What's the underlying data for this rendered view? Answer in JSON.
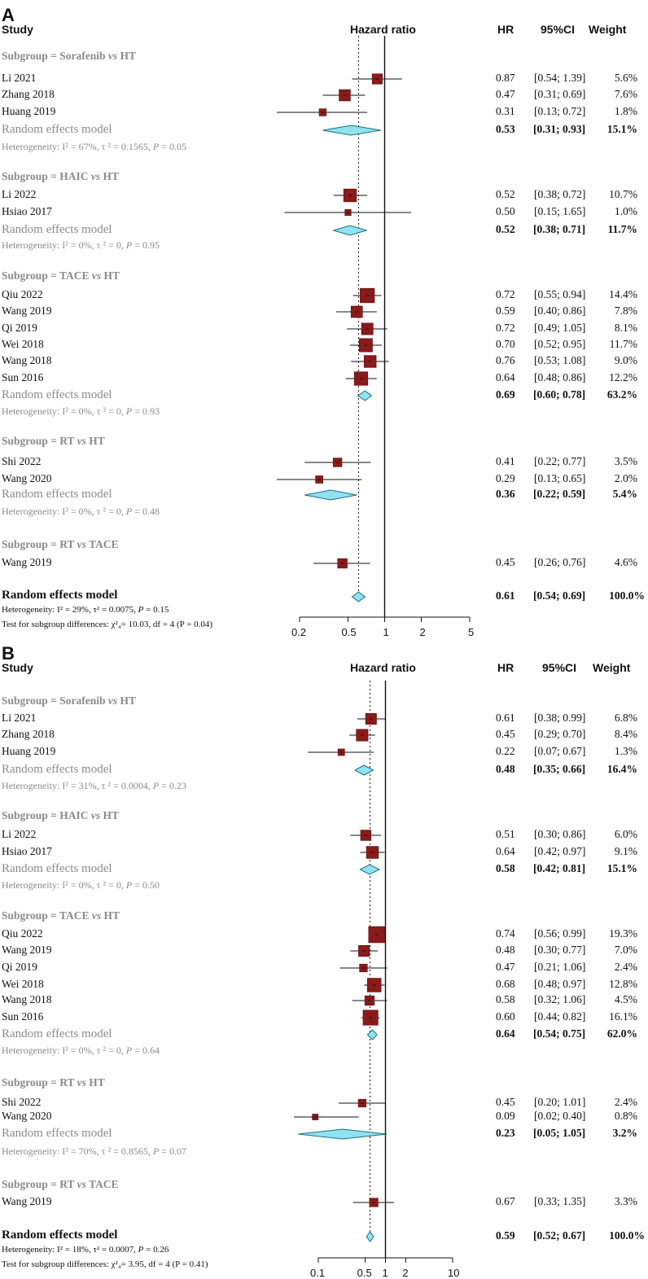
{
  "header": {
    "study": "Study",
    "hazard_ratio": "Hazard ratio",
    "hr": "HR",
    "ci": "95%CI",
    "weight": "Weight"
  },
  "chart_data": [
    {
      "panel": "A",
      "type": "forest",
      "x_scale": "log",
      "xlim": [
        0.2,
        5
      ],
      "ticks": [
        "0.2",
        "0.5",
        "1",
        "2",
        "5"
      ],
      "overall": {
        "label": "Random effects model",
        "hr": "0.61",
        "ci": "[0.54; 0.69]",
        "weight": "100.0%",
        "est": 0.61,
        "lo": 0.54,
        "hi": 0.69
      },
      "footer": [
        "Heterogeneity: I² = 29%, τ² = 0.0075, P = 0.15",
        "Test for subgroup differences: χ²₄= 10.03, df = 4 (P = 0.04)"
      ],
      "subgroups": [
        {
          "title": "Subgroup = Sorafenib vs HT",
          "studies": [
            {
              "name": "Li 2021",
              "hr": "0.87",
              "ci": "[0.54; 1.39]",
              "weight": "5.6%",
              "est": 0.87,
              "lo": 0.54,
              "hi": 1.39,
              "w": 5.6
            },
            {
              "name": "Zhang 2018",
              "hr": "0.47",
              "ci": "[0.31; 0.69]",
              "weight": "7.6%",
              "est": 0.47,
              "lo": 0.31,
              "hi": 0.69,
              "w": 7.6
            },
            {
              "name": "Huang 2019",
              "hr": "0.31",
              "ci": "[0.13; 0.72]",
              "weight": "1.8%",
              "est": 0.31,
              "lo": 0.13,
              "hi": 0.72,
              "w": 1.8
            }
          ],
          "model": {
            "label": "Random effects model",
            "hr": "0.53",
            "ci": "[0.31; 0.93]",
            "weight": "15.1%",
            "est": 0.53,
            "lo": 0.31,
            "hi": 0.93
          },
          "het": "Heterogeneity: I² = 67%, τ ² = 0.1565, P = 0.05"
        },
        {
          "title": "Subgroup = HAIC vs HT",
          "studies": [
            {
              "name": "Li 2022",
              "hr": "0.52",
              "ci": "[0.38; 0.72]",
              "weight": "10.7%",
              "est": 0.52,
              "lo": 0.38,
              "hi": 0.72,
              "w": 10.7
            },
            {
              "name": "Hsiao 2017",
              "hr": "0.50",
              "ci": "[0.15; 1.65]",
              "weight": "1.0%",
              "est": 0.5,
              "lo": 0.15,
              "hi": 1.65,
              "w": 1.0
            }
          ],
          "model": {
            "label": "Random effects model",
            "hr": "0.52",
            "ci": "[0.38; 0.71]",
            "weight": "11.7%",
            "est": 0.52,
            "lo": 0.38,
            "hi": 0.71
          },
          "het": "Heterogeneity: I² = 0%, τ ² = 0, P = 0.95"
        },
        {
          "title": "Subgroup = TACE vs HT",
          "studies": [
            {
              "name": "Qiu 2022",
              "hr": "0.72",
              "ci": "[0.55; 0.94]",
              "weight": "14.4%",
              "est": 0.72,
              "lo": 0.55,
              "hi": 0.94,
              "w": 14.4
            },
            {
              "name": "Wang 2019",
              "hr": "0.59",
              "ci": "[0.40; 0.86]",
              "weight": "7.8%",
              "est": 0.59,
              "lo": 0.4,
              "hi": 0.86,
              "w": 7.8
            },
            {
              "name": "Qi 2019",
              "hr": "0.72",
              "ci": "[0.49; 1.05]",
              "weight": "8.1%",
              "est": 0.72,
              "lo": 0.49,
              "hi": 1.05,
              "w": 8.1
            },
            {
              "name": "Wei 2018",
              "hr": "0.70",
              "ci": "[0.52; 0.95]",
              "weight": "11.7%",
              "est": 0.7,
              "lo": 0.52,
              "hi": 0.95,
              "w": 11.7
            },
            {
              "name": "Wang 2018",
              "hr": "0.76",
              "ci": "[0.53; 1.08]",
              "weight": "9.0%",
              "est": 0.76,
              "lo": 0.53,
              "hi": 1.08,
              "w": 9.0
            },
            {
              "name": "Sun 2016",
              "hr": "0.64",
              "ci": "[0.48; 0.86]",
              "weight": "12.2%",
              "est": 0.64,
              "lo": 0.48,
              "hi": 0.86,
              "w": 12.2
            }
          ],
          "model": {
            "label": "Random effects model",
            "hr": "0.69",
            "ci": "[0.60; 0.78]",
            "weight": "63.2%",
            "est": 0.69,
            "lo": 0.6,
            "hi": 0.78
          },
          "het": "Heterogeneity: I² = 0%, τ ² = 0, P = 0.93"
        },
        {
          "title": "Subgroup = RT vs HT",
          "studies": [
            {
              "name": "Shi 2022",
              "hr": "0.41",
              "ci": "[0.22; 0.77]",
              "weight": "3.5%",
              "est": 0.41,
              "lo": 0.22,
              "hi": 0.77,
              "w": 3.5
            },
            {
              "name": "Wang 2020",
              "hr": "0.29",
              "ci": "[0.13; 0.65]",
              "weight": "2.0%",
              "est": 0.29,
              "lo": 0.13,
              "hi": 0.65,
              "w": 2.0
            }
          ],
          "model": {
            "label": "Random effects model",
            "hr": "0.36",
            "ci": "[0.22; 0.59]",
            "weight": "5.4%",
            "est": 0.36,
            "lo": 0.22,
            "hi": 0.59
          },
          "het": "Heterogeneity: I² = 0%, τ ² = 0, P = 0.48"
        },
        {
          "title": "Subgroup = RT vs TACE",
          "studies": [
            {
              "name": "Wang 2019",
              "hr": "0.45",
              "ci": "[0.26; 0.76]",
              "weight": "4.6%",
              "est": 0.45,
              "lo": 0.26,
              "hi": 0.76,
              "w": 4.6
            }
          ],
          "model": null,
          "het": ""
        }
      ]
    },
    {
      "panel": "B",
      "type": "forest",
      "x_scale": "log",
      "xlim": [
        0.1,
        10
      ],
      "ticks": [
        "0.1",
        "0.5",
        "1",
        "2",
        "10"
      ],
      "overall": {
        "label": "Random effects model",
        "hr": "0.59",
        "ci": "[0.52; 0.67]",
        "weight": "100.0%",
        "est": 0.59,
        "lo": 0.52,
        "hi": 0.67
      },
      "footer": [
        "Heterogeneity: I² = 18%, τ² = 0.0007, P = 0.26",
        "Test for subgroup differences: χ²₄= 3.95, df = 4 (P = 0.41)"
      ],
      "subgroups": [
        {
          "title": "Subgroup = Sorafenib vs HT",
          "studies": [
            {
              "name": "Li 2021",
              "hr": "0.61",
              "ci": "[0.38; 0.99]",
              "weight": "6.8%",
              "est": 0.61,
              "lo": 0.38,
              "hi": 0.99,
              "w": 6.8
            },
            {
              "name": "Zhang 2018",
              "hr": "0.45",
              "ci": "[0.29; 0.70]",
              "weight": "8.4%",
              "est": 0.45,
              "lo": 0.29,
              "hi": 0.7,
              "w": 8.4
            },
            {
              "name": "Huang 2019",
              "hr": "0.22",
              "ci": "[0.07; 0.67]",
              "weight": "1.3%",
              "est": 0.22,
              "lo": 0.07,
              "hi": 0.67,
              "w": 1.3
            }
          ],
          "model": {
            "label": "Random effects model",
            "hr": "0.48",
            "ci": "[0.35; 0.66]",
            "weight": "16.4%",
            "est": 0.48,
            "lo": 0.35,
            "hi": 0.66
          },
          "het": "Heterogeneity: I² = 31%, τ ² = 0.0004, P = 0.23"
        },
        {
          "title": "Subgroup = HAIC vs HT",
          "studies": [
            {
              "name": "Li 2022",
              "hr": "0.51",
              "ci": "[0.30; 0.86]",
              "weight": "6.0%",
              "est": 0.51,
              "lo": 0.3,
              "hi": 0.86,
              "w": 6.0
            },
            {
              "name": "Hsiao 2017",
              "hr": "0.64",
              "ci": "[0.42; 0.97]",
              "weight": "9.1%",
              "est": 0.64,
              "lo": 0.42,
              "hi": 0.97,
              "w": 9.1
            }
          ],
          "model": {
            "label": "Random effects model",
            "hr": "0.58",
            "ci": "[0.42; 0.81]",
            "weight": "15.1%",
            "est": 0.58,
            "lo": 0.42,
            "hi": 0.81
          },
          "het": "Heterogeneity: I² = 0%, τ ² = 0, P = 0.50"
        },
        {
          "title": "Subgroup = TACE vs HT",
          "studies": [
            {
              "name": "Qiu 2022",
              "hr": "0.74",
              "ci": "[0.56; 0.99]",
              "weight": "19.3%",
              "est": 0.74,
              "lo": 0.56,
              "hi": 0.99,
              "w": 19.3
            },
            {
              "name": "Wang 2019",
              "hr": "0.48",
              "ci": "[0.30; 0.77]",
              "weight": "7.0%",
              "est": 0.48,
              "lo": 0.3,
              "hi": 0.77,
              "w": 7.0
            },
            {
              "name": "Qi 2019",
              "hr": "0.47",
              "ci": "[0.21; 1.06]",
              "weight": "2.4%",
              "est": 0.47,
              "lo": 0.21,
              "hi": 1.06,
              "w": 2.4
            },
            {
              "name": "Wei 2018",
              "hr": "0.68",
              "ci": "[0.48; 0.97]",
              "weight": "12.8%",
              "est": 0.68,
              "lo": 0.48,
              "hi": 0.97,
              "w": 12.8
            },
            {
              "name": "Wang 2018",
              "hr": "0.58",
              "ci": "[0.32; 1.06]",
              "weight": "4.5%",
              "est": 0.58,
              "lo": 0.32,
              "hi": 1.06,
              "w": 4.5
            },
            {
              "name": "Sun 2016",
              "hr": "0.60",
              "ci": "[0.44; 0.82]",
              "weight": "16.1%",
              "est": 0.6,
              "lo": 0.44,
              "hi": 0.82,
              "w": 16.1
            }
          ],
          "model": {
            "label": "Random effects model",
            "hr": "0.64",
            "ci": "[0.54; 0.75]",
            "weight": "62.0%",
            "est": 0.64,
            "lo": 0.54,
            "hi": 0.75
          },
          "het": "Heterogeneity: I² = 0%, τ ² = 0, P = 0.64"
        },
        {
          "title": "Subgroup = RT vs HT",
          "studies": [
            {
              "name": "Shi 2022",
              "hr": "0.45",
              "ci": "[0.20; 1.01]",
              "weight": "2.4%",
              "est": 0.45,
              "lo": 0.2,
              "hi": 1.01,
              "w": 2.4
            },
            {
              "name": "Wang 2020",
              "hr": "0.09",
              "ci": "[0.02; 0.40]",
              "weight": "0.8%",
              "est": 0.09,
              "lo": 0.02,
              "hi": 0.4,
              "w": 0.8
            }
          ],
          "model": {
            "label": "Random effects model",
            "hr": "0.23",
            "ci": "[0.05; 1.05]",
            "weight": "3.2%",
            "est": 0.23,
            "lo": 0.05,
            "hi": 1.05
          },
          "het": "Heterogeneity: I² = 70%, τ ² = 0.8565, P = 0.07"
        },
        {
          "title": "Subgroup = RT vs TACE",
          "studies": [
            {
              "name": "Wang 2019",
              "hr": "0.67",
              "ci": "[0.33; 1.35]",
              "weight": "3.3%",
              "est": 0.67,
              "lo": 0.33,
              "hi": 1.35,
              "w": 3.3
            }
          ],
          "model": null,
          "het": ""
        }
      ]
    }
  ],
  "colors": {
    "square": "#8b1a1a",
    "diamond_fill": "#8fe3ef",
    "diamond_stroke": "#1a6f80",
    "grey_text": "#8a8a8a"
  }
}
